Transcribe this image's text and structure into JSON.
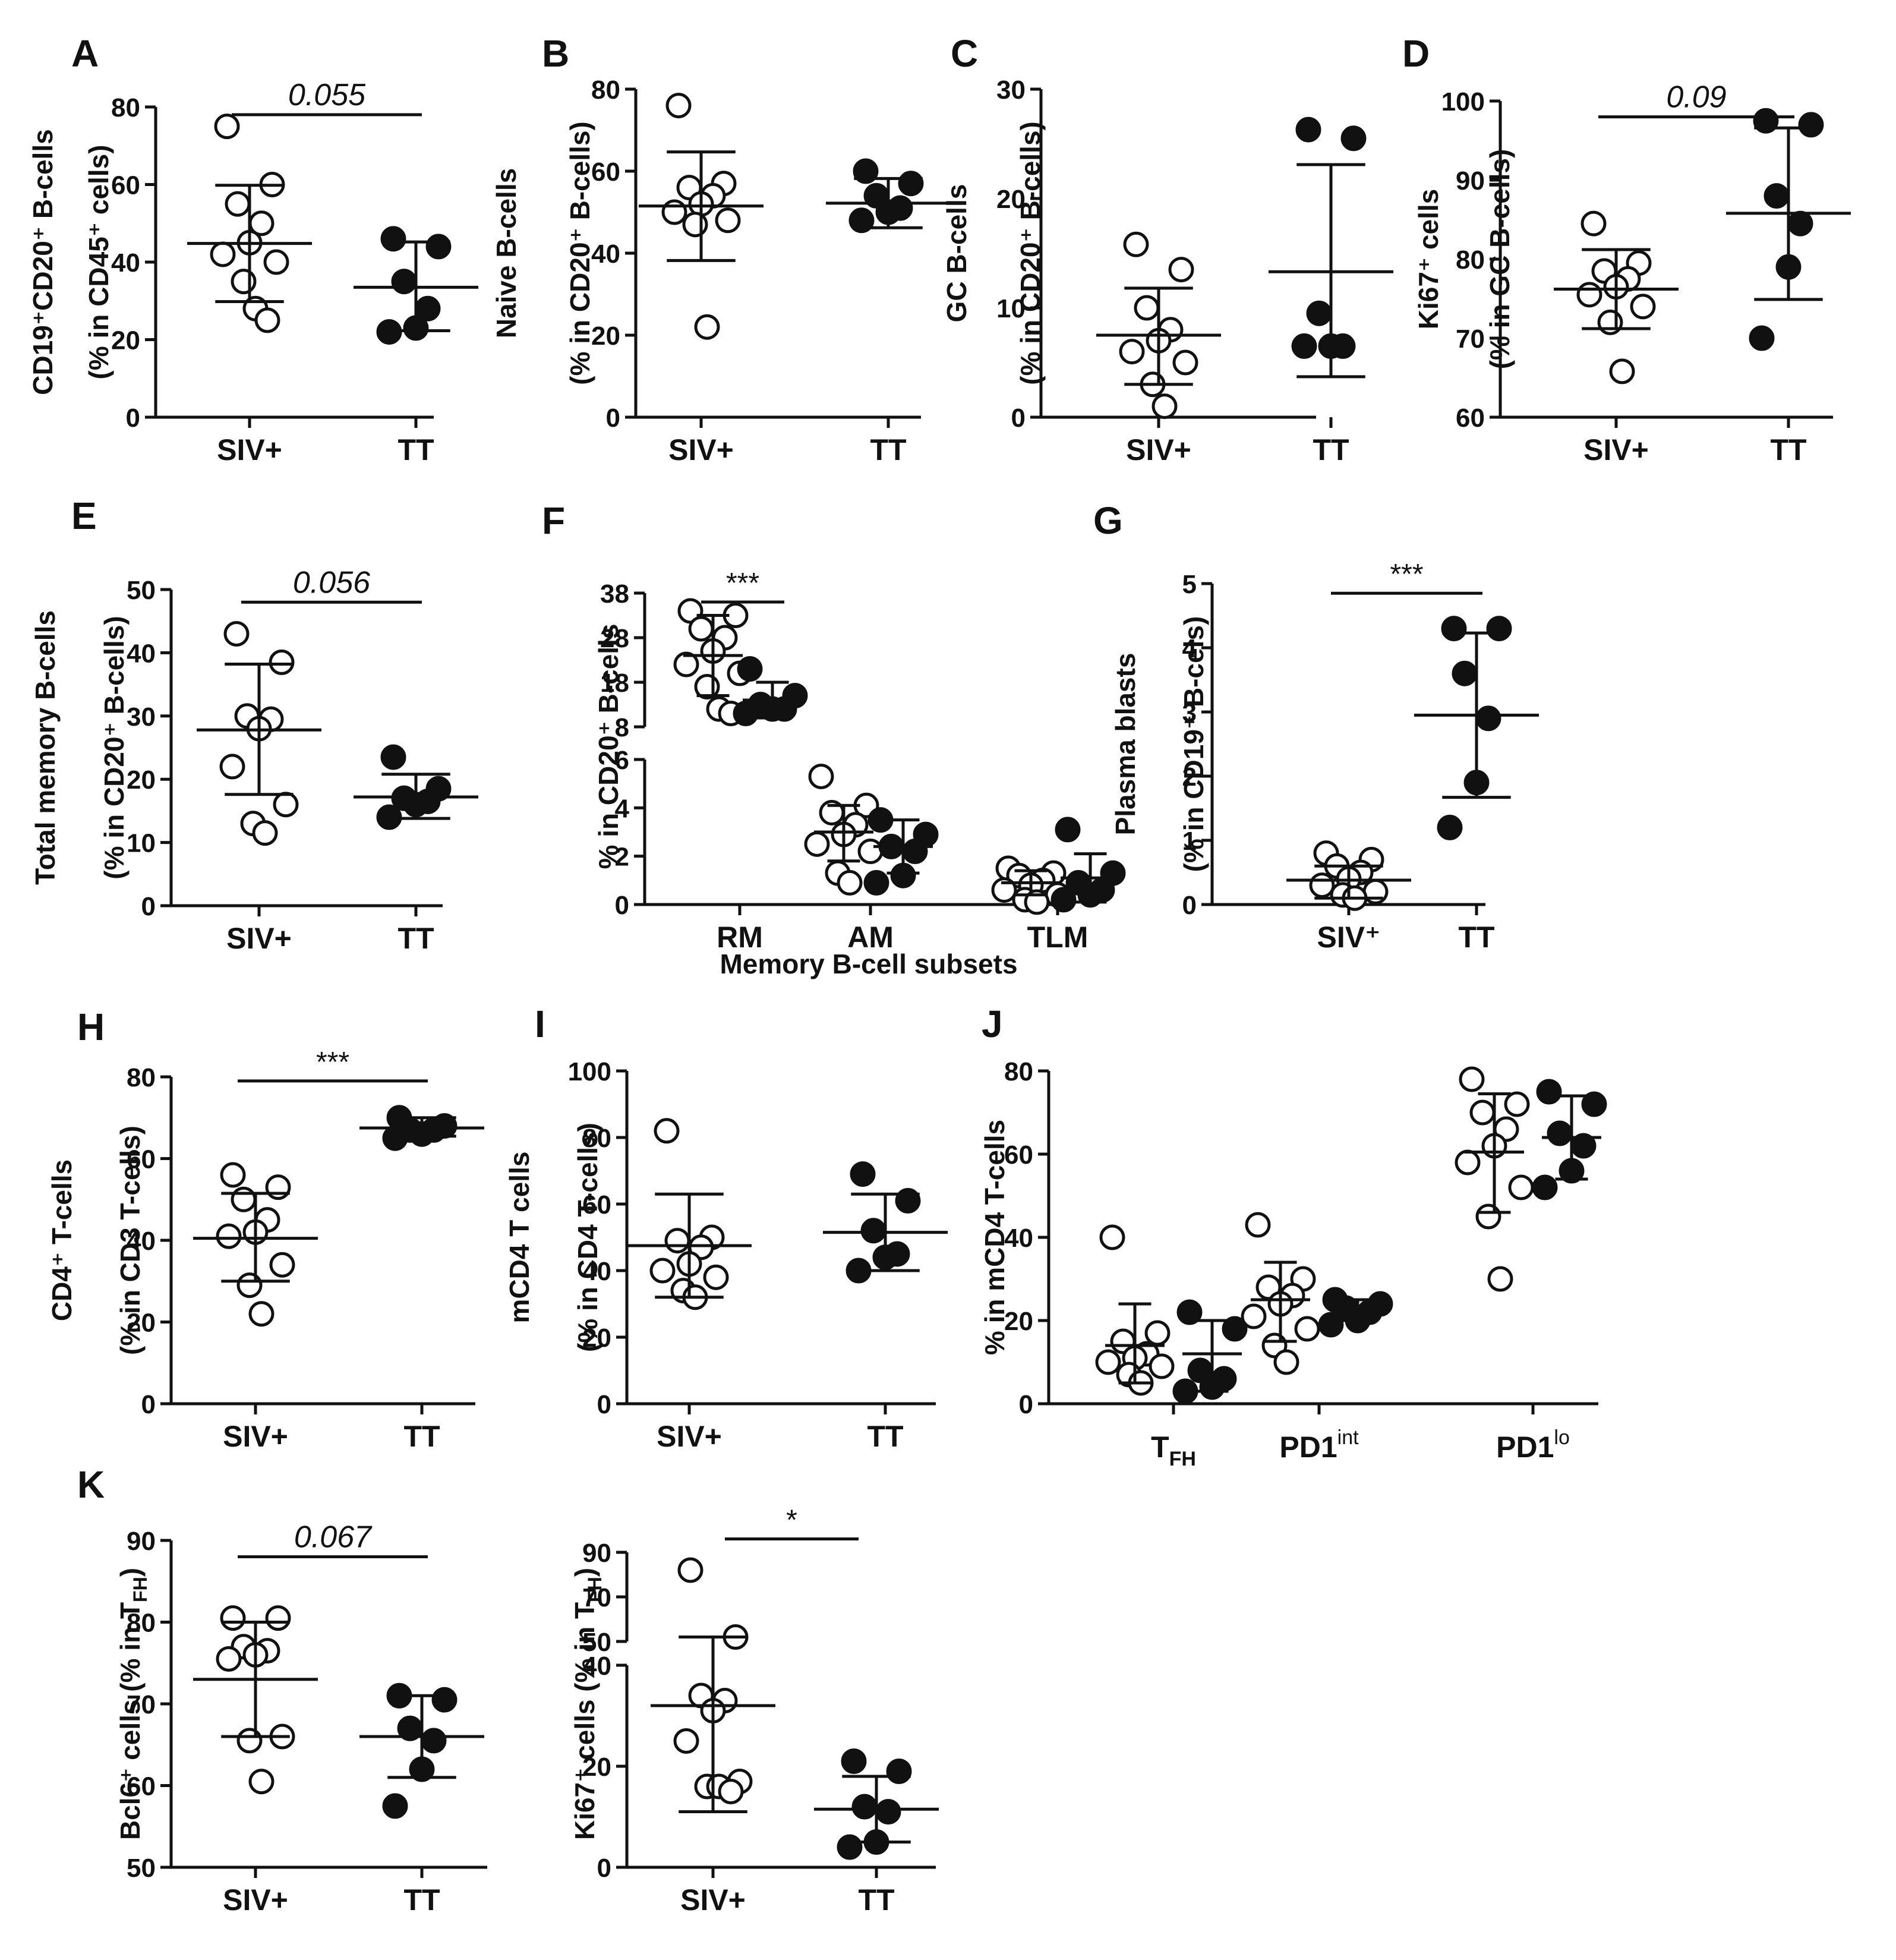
{
  "chart_data": [
    {
      "id": "A",
      "type": "scatter",
      "letter": "A",
      "ylabel": [
        "CD19⁺CD20⁺ B-cells",
        "(% in CD45⁺ cells)"
      ],
      "yticks": [
        0,
        20,
        40,
        60,
        80
      ],
      "ylim": [
        0,
        80
      ],
      "categories": [
        "SIV+",
        "TT"
      ],
      "series": [
        {
          "name": "SIV+",
          "fill": "open",
          "values": [
            75,
            60,
            55,
            50,
            45,
            42,
            40,
            35,
            28,
            25
          ],
          "mean": 44.8,
          "sd_low": 29.8,
          "sd_high": 59.8
        },
        {
          "name": "TT",
          "fill": "filled",
          "values": [
            46,
            44,
            35,
            28,
            23,
            22
          ],
          "mean": 33.5,
          "sd_low": 22.3,
          "sd_high": 45.2
        }
      ],
      "significance": [
        {
          "label": "0.055",
          "italic": true,
          "from": 0,
          "to": 1,
          "y": 78
        }
      ]
    },
    {
      "id": "B",
      "type": "scatter",
      "letter": "B",
      "ylabel": [
        "Naive B-cells",
        "(% in CD20⁺ B-cells)"
      ],
      "yticks": [
        0,
        20,
        40,
        60,
        80
      ],
      "ylim": [
        0,
        80
      ],
      "categories": [
        "SIV+",
        "TT"
      ],
      "series": [
        {
          "name": "SIV+",
          "fill": "open",
          "values": [
            76,
            57,
            56,
            54,
            52,
            50,
            48,
            47,
            22
          ],
          "mean": 51.5,
          "sd_low": 38.2,
          "sd_high": 64.7
        },
        {
          "name": "TT",
          "fill": "filled",
          "values": [
            60,
            57,
            54,
            51,
            50,
            48
          ],
          "mean": 52.2,
          "sd_low": 46.2,
          "sd_high": 58.2
        }
      ],
      "significance": []
    },
    {
      "id": "C",
      "type": "scatter",
      "letter": "C",
      "ylabel": [
        "GC B-cells",
        "(% in CD20⁺ B-cells)"
      ],
      "yticks": [
        0,
        10,
        20,
        30
      ],
      "ylim": [
        0,
        30
      ],
      "categories": [
        "SIV+",
        "TT"
      ],
      "series": [
        {
          "name": "SIV+",
          "fill": "open",
          "values": [
            15.8,
            13.5,
            10,
            8,
            7,
            6,
            5,
            3,
            1
          ],
          "mean": 7.5,
          "sd_low": 3.0,
          "sd_high": 11.8
        },
        {
          "name": "TT",
          "fill": "filled",
          "values": [
            26.3,
            25.5,
            9.5,
            6.5,
            6.5,
            6.5
          ],
          "mean": 13.3,
          "sd_low": 3.7,
          "sd_high": 23.1
        }
      ],
      "significance": []
    },
    {
      "id": "D",
      "type": "scatter",
      "letter": "D",
      "ylabel": [
        "Ki67⁺ cells",
        "(% in GC B-cells)"
      ],
      "yticks": [
        60,
        70,
        80,
        90,
        100
      ],
      "ylim": [
        60,
        100
      ],
      "categories": [
        "SIV+",
        "TT"
      ],
      "series": [
        {
          "name": "SIV+",
          "fill": "open",
          "values": [
            84.5,
            79.5,
            78.5,
            77.5,
            76.5,
            75.5,
            74,
            72,
            65.8
          ],
          "mean": 76.2,
          "sd_low": 71.2,
          "sd_high": 81.2
        },
        {
          "name": "TT",
          "fill": "filled",
          "values": [
            97.5,
            97,
            88,
            84.5,
            79,
            70
          ],
          "mean": 85.8,
          "sd_low": 74.9,
          "sd_high": 96.6
        }
      ],
      "significance": [
        {
          "label": "0.09",
          "italic": true,
          "from": 0,
          "to": 1,
          "y": 98
        }
      ]
    },
    {
      "id": "E",
      "type": "scatter",
      "letter": "E",
      "ylabel": [
        "Total memory B-cells",
        "(% in CD20⁺ B-cells)"
      ],
      "yticks": [
        0,
        10,
        20,
        30,
        40,
        50
      ],
      "ylim": [
        0,
        50
      ],
      "categories": [
        "SIV+",
        "TT"
      ],
      "series": [
        {
          "name": "SIV+",
          "fill": "open",
          "values": [
            43,
            38.5,
            30,
            29.5,
            28,
            22,
            16,
            13,
            11.5
          ],
          "mean": 27.8,
          "sd_low": 17.6,
          "sd_high": 38.2
        },
        {
          "name": "TT",
          "fill": "filled",
          "values": [
            23.5,
            18.5,
            17,
            16.5,
            16,
            14
          ],
          "mean": 17.2,
          "sd_low": 13.8,
          "sd_high": 20.8
        },
        {
          "name": "",
          "fill": "open",
          "values": []
        }
      ],
      "significance": [
        {
          "label": "0.056",
          "italic": true,
          "from": 0,
          "to": 1,
          "y": 48
        }
      ]
    },
    {
      "id": "F",
      "type": "scatter",
      "letter": "F",
      "ylabel": [
        "% in CD20⁺ B-cells"
      ],
      "xlabel": "Memory B-cell subsets",
      "yticks_upper": [
        8,
        18,
        28,
        38
      ],
      "ylim_upper": [
        8,
        38
      ],
      "yticks_lower": [
        0,
        2,
        4,
        6
      ],
      "ylim_lower": [
        0,
        6
      ],
      "categories": [
        "RM",
        "AM",
        "TLM"
      ],
      "series": [
        {
          "name": "SIV+",
          "fill": "open",
          "values": [
            [
              34,
              33,
              30,
              28,
              25,
              22,
              20,
              17,
              12,
              11
            ],
            [
              5.3,
              4.1,
              3.8,
              3.3,
              2.9,
              2.5,
              2.2,
              1.3,
              0.9
            ],
            [
              1.5,
              1.3,
              1.2,
              1.0,
              0.8,
              0.6,
              0.4,
              0.2,
              0.1
            ]
          ],
          "mean": [
            24,
            3.0,
            0.9
          ],
          "sd_low": [
            15,
            1.8,
            0.4
          ],
          "sd_high": [
            33,
            4.1,
            1.4
          ]
        },
        {
          "name": "TT",
          "fill": "filled",
          "values": [
            [
              21,
              15,
              13,
              12,
              12,
              11
            ],
            [
              3.5,
              2.9,
              2.4,
              2.2,
              1.2,
              0.9
            ],
            [
              3.1,
              1.3,
              0.9,
              0.6,
              0.4,
              0.2
            ]
          ],
          "mean": [
            14,
            2.4,
            1.1
          ],
          "sd_low": [
            10,
            1.3,
            0.1
          ],
          "sd_high": [
            18,
            3.5,
            2.1
          ]
        }
      ],
      "significance": [
        {
          "label": "***",
          "italic": false,
          "from": 0,
          "to": 0,
          "y": 36
        }
      ]
    },
    {
      "id": "G",
      "type": "scatter",
      "letter": "G",
      "ylabel": [
        "Plasma blasts",
        "(% in CD19⁺ B-cels)"
      ],
      "yticks": [
        0,
        1,
        2,
        3,
        4,
        5
      ],
      "ylim": [
        0,
        5
      ],
      "categories": [
        "SIV⁺",
        "TT"
      ],
      "series": [
        {
          "name": "SIV⁺",
          "fill": "open",
          "values": [
            0.8,
            0.7,
            0.6,
            0.5,
            0.4,
            0.3,
            0.2,
            0.15,
            0.1
          ],
          "mean": 0.38,
          "sd_low": 0.1,
          "sd_high": 0.6
        },
        {
          "name": "TT",
          "fill": "filled",
          "values": [
            4.3,
            4.3,
            3.6,
            2.9,
            1.9,
            1.2
          ],
          "mean": 2.95,
          "sd_low": 1.67,
          "sd_high": 4.23
        }
      ],
      "significance": [
        {
          "label": "***",
          "italic": false,
          "from": 0,
          "to": 1,
          "y": 4.85
        }
      ]
    },
    {
      "id": "H",
      "type": "scatter",
      "letter": "H",
      "ylabel": [
        "CD4⁺ T-cells",
        "(% in CD3 T-cells)"
      ],
      "yticks": [
        0,
        20,
        40,
        60,
        80
      ],
      "ylim": [
        0,
        80
      ],
      "categories": [
        "SIV+",
        "TT"
      ],
      "series": [
        {
          "name": "SIV+",
          "fill": "open",
          "values": [
            56,
            53,
            50,
            45,
            42,
            41,
            34,
            29,
            22
          ],
          "mean": 40.5,
          "sd_low": 30,
          "sd_high": 51.5
        },
        {
          "name": "TT",
          "fill": "filled",
          "values": [
            70,
            68,
            67,
            67,
            66,
            65
          ],
          "mean": 67.5,
          "sd_low": 65.5,
          "sd_high": 70.0
        }
      ],
      "significance": [
        {
          "label": "***",
          "italic": false,
          "from": 0,
          "to": 1,
          "y": 79
        }
      ]
    },
    {
      "id": "I",
      "type": "scatter",
      "letter": "I",
      "ylabel": [
        "mCD4 T cells",
        "(% in CD4 T-cells)"
      ],
      "yticks": [
        0,
        20,
        40,
        60,
        80,
        100
      ],
      "ylim": [
        0,
        100
      ],
      "categories": [
        "SIV+",
        "TT"
      ],
      "series": [
        {
          "name": "SIV+",
          "fill": "open",
          "values": [
            82,
            50,
            49,
            47,
            42,
            40,
            38,
            34,
            32
          ],
          "mean": 47.5,
          "sd_low": 32,
          "sd_high": 63
        },
        {
          "name": "TT",
          "fill": "filled",
          "values": [
            69,
            61,
            52,
            45,
            44,
            40
          ],
          "mean": 51.5,
          "sd_low": 40,
          "sd_high": 63
        }
      ],
      "significance": []
    },
    {
      "id": "J",
      "type": "scatter",
      "letter": "J",
      "ylabel": [
        "% in mCD4 T-cells"
      ],
      "yticks": [
        0,
        20,
        40,
        60,
        80
      ],
      "ylim": [
        0,
        80
      ],
      "categories": [
        {
          "main": "T",
          "sub": "FH",
          "sup": ""
        },
        {
          "main": "PD1",
          "sub": "",
          "sup": "int"
        },
        {
          "main": "PD1",
          "sub": "",
          "sup": "lo"
        }
      ],
      "series": [
        {
          "name": "SIV+",
          "fill": "open",
          "values": [
            [
              40,
              17,
              15,
              12,
              11,
              10,
              9,
              7,
              5
            ],
            [
              43,
              30,
              28,
              26,
              24,
              21,
              18,
              14,
              10
            ],
            [
              78,
              72,
              70,
              66,
              62,
              58,
              52,
              45,
              30
            ]
          ],
          "mean": [
            14,
            25,
            60.5
          ],
          "sd_low": [
            5,
            15,
            46
          ],
          "sd_high": [
            24,
            34,
            74.5
          ]
        },
        {
          "name": "TT",
          "fill": "filled",
          "values": [
            [
              22,
              18,
              8,
              6,
              4,
              3
            ],
            [
              25,
              24,
              23,
              22,
              20,
              19
            ],
            [
              75,
              72,
              65,
              62,
              56,
              52
            ]
          ],
          "mean": [
            12,
            23,
            64
          ],
          "sd_low": [
            3,
            20,
            54
          ],
          "sd_high": [
            20,
            25,
            74
          ]
        }
      ],
      "significance": []
    },
    {
      "id": "K1",
      "type": "scatter",
      "letter": "K",
      "ylabel": [
        "Bcl6⁺ cells (% in T",
        "FH",
        ")"
      ],
      "yticks": [
        50,
        60,
        70,
        80,
        90
      ],
      "ylim": [
        50,
        90
      ],
      "categories": [
        "SIV+",
        "TT"
      ],
      "series": [
        {
          "name": "SIV+",
          "fill": "open",
          "values": [
            80.5,
            80.5,
            77,
            76.5,
            76,
            75.5,
            66,
            65.5,
            60.5
          ],
          "mean": 73,
          "sd_low": 66,
          "sd_high": 80
        },
        {
          "name": "TT",
          "fill": "filled",
          "values": [
            71,
            70.5,
            67,
            65.5,
            62,
            57.5
          ],
          "mean": 66,
          "sd_low": 61,
          "sd_high": 71
        },
        {
          "name": "",
          "fill": "open",
          "values": []
        }
      ],
      "significance": [
        {
          "label": "0.067",
          "italic": true,
          "from": 0,
          "to": 1,
          "y": 88
        }
      ]
    },
    {
      "id": "K2",
      "type": "scatter",
      "letter": "",
      "ylabel": [
        "Ki67⁺ cells (% in T",
        "FH",
        ")"
      ],
      "yticks_upper": [
        50,
        70,
        90
      ],
      "ylim_upper": [
        50,
        90
      ],
      "yticks_lower": [
        0,
        20,
        40
      ],
      "ylim_lower": [
        0,
        40
      ],
      "categories": [
        "SIV+",
        "TT"
      ],
      "series": [
        {
          "name": "SIV+",
          "fill": "open",
          "values": [
            82,
            52,
            34,
            33,
            31,
            25,
            17,
            16,
            16,
            15
          ],
          "mean": 32,
          "sd_low": 11,
          "sd_high": 52
        },
        {
          "name": "TT",
          "fill": "filled",
          "values": [
            21,
            19,
            12,
            11,
            5,
            4
          ],
          "mean": 11.5,
          "sd_low": 5,
          "sd_high": 18
        },
        {
          "name": "",
          "fill": "open",
          "values": []
        }
      ],
      "significance": [
        {
          "label": "*",
          "italic": false,
          "from": 0,
          "to": 1,
          "y": 96
        }
      ]
    }
  ]
}
